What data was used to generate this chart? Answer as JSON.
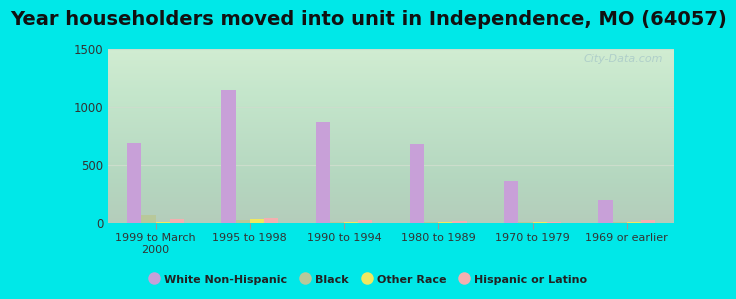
{
  "title": "Year householders moved into unit in Independence, MO (64057)",
  "categories": [
    "1999 to March\n2000",
    "1995 to 1998",
    "1990 to 1994",
    "1980 to 1989",
    "1970 to 1979",
    "1969 or earlier"
  ],
  "series": {
    "White Non-Hispanic": [
      690,
      1140,
      870,
      680,
      360,
      195
    ],
    "Black": [
      65,
      20,
      8,
      5,
      5,
      5
    ],
    "Other Race": [
      5,
      30,
      5,
      5,
      5,
      5
    ],
    "Hispanic or Latino": [
      30,
      35,
      25,
      10,
      8,
      25
    ]
  },
  "colors": {
    "White Non-Hispanic": "#c8a0d8",
    "Black": "#b8c89a",
    "Other Race": "#f0e860",
    "Hispanic or Latino": "#f4b0b0"
  },
  "ylim": [
    0,
    1500
  ],
  "yticks": [
    0,
    500,
    1000,
    1500
  ],
  "background_outer": "#00e8e8",
  "title_fontsize": 14,
  "bar_width": 0.15,
  "watermark": "City-Data.com"
}
